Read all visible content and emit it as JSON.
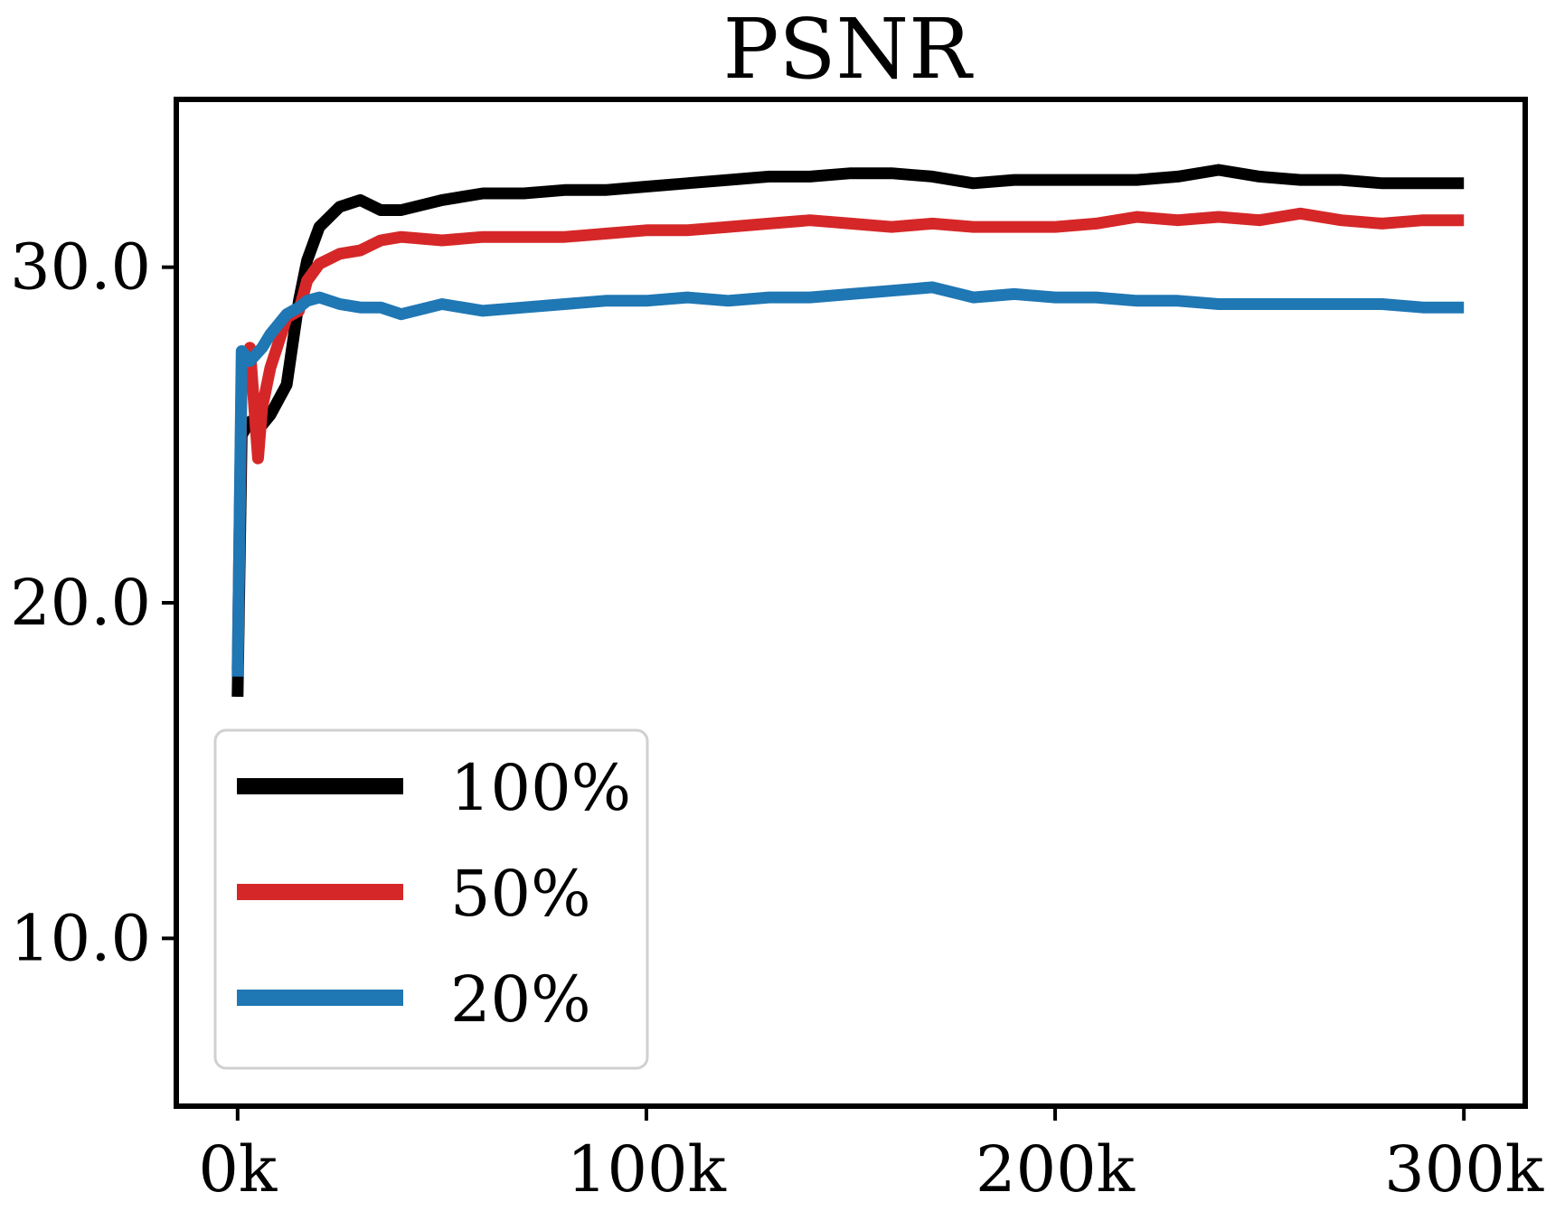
{
  "chart_data": {
    "type": "line",
    "title": "PSNR",
    "xlabel": "",
    "ylabel": "",
    "xlim": [
      -15000,
      315000
    ],
    "ylim": [
      5,
      35
    ],
    "x_ticks": [
      0,
      100000,
      200000,
      300000
    ],
    "x_tick_labels": [
      "0k",
      "100k",
      "200k",
      "300k"
    ],
    "y_ticks": [
      10,
      20,
      30
    ],
    "y_tick_labels": [
      "10.0",
      "20.0",
      "30.0"
    ],
    "grid": false,
    "legend_position": "bottom-left",
    "series": [
      {
        "name": "100%",
        "color": "#000000",
        "x": [
          0,
          1000,
          3000,
          6000,
          8000,
          12000,
          15000,
          17000,
          20000,
          25000,
          30000,
          35000,
          40000,
          50000,
          60000,
          70000,
          80000,
          90000,
          100000,
          110000,
          120000,
          130000,
          140000,
          150000,
          160000,
          170000,
          180000,
          190000,
          200000,
          210000,
          220000,
          230000,
          240000,
          250000,
          260000,
          270000,
          280000,
          290000,
          300000
        ],
        "y": [
          17.2,
          25.0,
          25.4,
          25.3,
          25.6,
          26.5,
          29.0,
          30.2,
          31.2,
          31.8,
          32.0,
          31.7,
          31.7,
          32.0,
          32.2,
          32.2,
          32.3,
          32.3,
          32.4,
          32.5,
          32.6,
          32.7,
          32.7,
          32.8,
          32.8,
          32.7,
          32.5,
          32.6,
          32.6,
          32.6,
          32.6,
          32.7,
          32.9,
          32.7,
          32.6,
          32.6,
          32.5,
          32.5,
          32.5
        ]
      },
      {
        "name": "50%",
        "color": "#d62728",
        "x": [
          0,
          1000,
          3000,
          5000,
          6000,
          8000,
          12000,
          15000,
          17000,
          20000,
          25000,
          30000,
          35000,
          40000,
          50000,
          60000,
          70000,
          80000,
          90000,
          100000,
          110000,
          120000,
          130000,
          140000,
          150000,
          160000,
          170000,
          180000,
          190000,
          200000,
          210000,
          220000,
          230000,
          240000,
          250000,
          260000,
          270000,
          280000,
          290000,
          300000
        ],
        "y": [
          18.0,
          26.8,
          27.6,
          24.3,
          25.8,
          27.0,
          28.5,
          28.7,
          29.6,
          30.1,
          30.4,
          30.5,
          30.8,
          30.9,
          30.8,
          30.9,
          30.9,
          30.9,
          31.0,
          31.1,
          31.1,
          31.2,
          31.3,
          31.4,
          31.3,
          31.2,
          31.3,
          31.2,
          31.2,
          31.2,
          31.3,
          31.5,
          31.4,
          31.5,
          31.4,
          31.6,
          31.4,
          31.3,
          31.4,
          31.4
        ]
      },
      {
        "name": "20%",
        "color": "#1f77b4",
        "x": [
          0,
          1000,
          3000,
          6000,
          8000,
          12000,
          15000,
          17000,
          20000,
          25000,
          30000,
          35000,
          40000,
          50000,
          60000,
          70000,
          80000,
          90000,
          100000,
          110000,
          120000,
          130000,
          140000,
          150000,
          160000,
          170000,
          180000,
          190000,
          200000,
          210000,
          220000,
          230000,
          240000,
          250000,
          260000,
          270000,
          280000,
          290000,
          300000
        ],
        "y": [
          17.8,
          27.5,
          27.2,
          27.6,
          28.0,
          28.6,
          28.8,
          29.0,
          29.1,
          28.9,
          28.8,
          28.8,
          28.6,
          28.9,
          28.7,
          28.8,
          28.9,
          29.0,
          29.0,
          29.1,
          29.0,
          29.1,
          29.1,
          29.2,
          29.3,
          29.4,
          29.1,
          29.2,
          29.1,
          29.1,
          29.0,
          29.0,
          28.9,
          28.9,
          28.9,
          28.9,
          28.9,
          28.8,
          28.8
        ]
      }
    ]
  }
}
